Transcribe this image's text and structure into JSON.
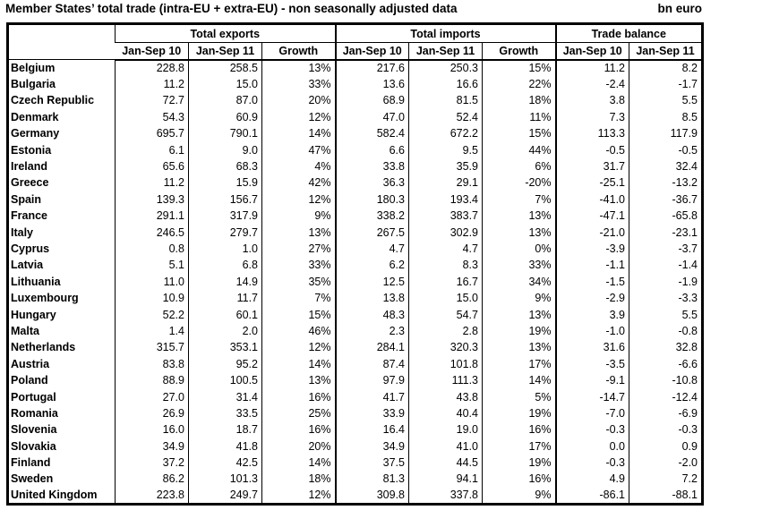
{
  "title": "Member States’ total trade (intra-EU + extra-EU) - non seasonally adjusted data",
  "unit": "bn euro",
  "table": {
    "groups": [
      {
        "label": "Total exports",
        "cols": [
          "Jan-Sep 10",
          "Jan-Sep 11",
          "Growth"
        ]
      },
      {
        "label": "Total imports",
        "cols": [
          "Jan-Sep 10",
          "Jan-Sep 11",
          "Growth"
        ]
      },
      {
        "label": "Trade balance",
        "cols": [
          "Jan-Sep 10",
          "Jan-Sep 11"
        ]
      }
    ],
    "rows": [
      {
        "country": "Belgium",
        "values": [
          "228.8",
          "258.5",
          "13%",
          "217.6",
          "250.3",
          "15%",
          "11.2",
          "8.2"
        ]
      },
      {
        "country": "Bulgaria",
        "values": [
          "11.2",
          "15.0",
          "33%",
          "13.6",
          "16.6",
          "22%",
          "-2.4",
          "-1.7"
        ]
      },
      {
        "country": "Czech Republic",
        "values": [
          "72.7",
          "87.0",
          "20%",
          "68.9",
          "81.5",
          "18%",
          "3.8",
          "5.5"
        ]
      },
      {
        "country": "Denmark",
        "values": [
          "54.3",
          "60.9",
          "12%",
          "47.0",
          "52.4",
          "11%",
          "7.3",
          "8.5"
        ]
      },
      {
        "country": "Germany",
        "values": [
          "695.7",
          "790.1",
          "14%",
          "582.4",
          "672.2",
          "15%",
          "113.3",
          "117.9"
        ]
      },
      {
        "country": "Estonia",
        "values": [
          "6.1",
          "9.0",
          "47%",
          "6.6",
          "9.5",
          "44%",
          "-0.5",
          "-0.5"
        ]
      },
      {
        "country": "Ireland",
        "values": [
          "65.6",
          "68.3",
          "4%",
          "33.8",
          "35.9",
          "6%",
          "31.7",
          "32.4"
        ]
      },
      {
        "country": "Greece",
        "values": [
          "11.2",
          "15.9",
          "42%",
          "36.3",
          "29.1",
          "-20%",
          "-25.1",
          "-13.2"
        ]
      },
      {
        "country": "Spain",
        "values": [
          "139.3",
          "156.7",
          "12%",
          "180.3",
          "193.4",
          "7%",
          "-41.0",
          "-36.7"
        ]
      },
      {
        "country": "France",
        "values": [
          "291.1",
          "317.9",
          "9%",
          "338.2",
          "383.7",
          "13%",
          "-47.1",
          "-65.8"
        ]
      },
      {
        "country": "Italy",
        "values": [
          "246.5",
          "279.7",
          "13%",
          "267.5",
          "302.9",
          "13%",
          "-21.0",
          "-23.1"
        ]
      },
      {
        "country": "Cyprus",
        "values": [
          "0.8",
          "1.0",
          "27%",
          "4.7",
          "4.7",
          "0%",
          "-3.9",
          "-3.7"
        ]
      },
      {
        "country": "Latvia",
        "values": [
          "5.1",
          "6.8",
          "33%",
          "6.2",
          "8.3",
          "33%",
          "-1.1",
          "-1.4"
        ]
      },
      {
        "country": "Lithuania",
        "values": [
          "11.0",
          "14.9",
          "35%",
          "12.5",
          "16.7",
          "34%",
          "-1.5",
          "-1.9"
        ]
      },
      {
        "country": "Luxembourg",
        "values": [
          "10.9",
          "11.7",
          "7%",
          "13.8",
          "15.0",
          "9%",
          "-2.9",
          "-3.3"
        ]
      },
      {
        "country": "Hungary",
        "values": [
          "52.2",
          "60.1",
          "15%",
          "48.3",
          "54.7",
          "13%",
          "3.9",
          "5.5"
        ]
      },
      {
        "country": "Malta",
        "values": [
          "1.4",
          "2.0",
          "46%",
          "2.3",
          "2.8",
          "19%",
          "-1.0",
          "-0.8"
        ]
      },
      {
        "country": "Netherlands",
        "values": [
          "315.7",
          "353.1",
          "12%",
          "284.1",
          "320.3",
          "13%",
          "31.6",
          "32.8"
        ]
      },
      {
        "country": "Austria",
        "values": [
          "83.8",
          "95.2",
          "14%",
          "87.4",
          "101.8",
          "17%",
          "-3.5",
          "-6.6"
        ]
      },
      {
        "country": "Poland",
        "values": [
          "88.9",
          "100.5",
          "13%",
          "97.9",
          "111.3",
          "14%",
          "-9.1",
          "-10.8"
        ]
      },
      {
        "country": "Portugal",
        "values": [
          "27.0",
          "31.4",
          "16%",
          "41.7",
          "43.8",
          "5%",
          "-14.7",
          "-12.4"
        ]
      },
      {
        "country": "Romania",
        "values": [
          "26.9",
          "33.5",
          "25%",
          "33.9",
          "40.4",
          "19%",
          "-7.0",
          "-6.9"
        ]
      },
      {
        "country": "Slovenia",
        "values": [
          "16.0",
          "18.7",
          "16%",
          "16.4",
          "19.0",
          "16%",
          "-0.3",
          "-0.3"
        ]
      },
      {
        "country": "Slovakia",
        "values": [
          "34.9",
          "41.8",
          "20%",
          "34.9",
          "41.0",
          "17%",
          "0.0",
          "0.9"
        ]
      },
      {
        "country": "Finland",
        "values": [
          "37.2",
          "42.5",
          "14%",
          "37.5",
          "44.5",
          "19%",
          "-0.3",
          "-2.0"
        ]
      },
      {
        "country": "Sweden",
        "values": [
          "86.2",
          "101.3",
          "18%",
          "81.3",
          "94.1",
          "16%",
          "4.9",
          "7.2"
        ]
      },
      {
        "country": "United Kingdom",
        "values": [
          "223.8",
          "249.7",
          "12%",
          "309.8",
          "337.8",
          "9%",
          "-86.1",
          "-88.1"
        ]
      }
    ]
  }
}
